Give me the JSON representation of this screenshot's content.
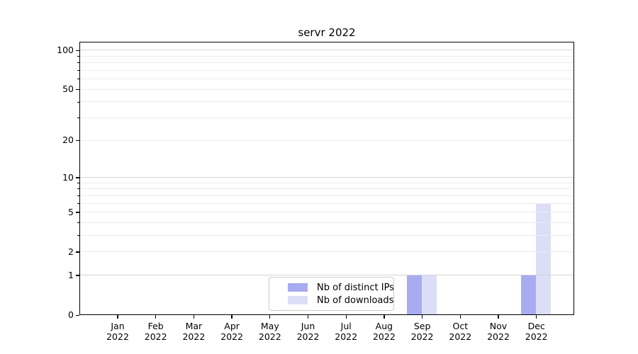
{
  "chart_data": {
    "type": "bar",
    "title": "servr 2022",
    "x_tick_labels_line1": [
      "Jan",
      "Feb",
      "Mar",
      "Apr",
      "May",
      "Jun",
      "Jul",
      "Aug",
      "Sep",
      "Oct",
      "Nov",
      "Dec"
    ],
    "x_tick_labels_line2": [
      "2022",
      "2022",
      "2022",
      "2022",
      "2022",
      "2022",
      "2022",
      "2022",
      "2022",
      "2022",
      "2022",
      "2022"
    ],
    "series": [
      {
        "name": "Nb of distinct IPs",
        "color": "#a9abf0",
        "values": [
          0,
          0,
          0,
          0,
          0,
          0,
          0,
          0,
          1,
          0,
          0,
          1
        ]
      },
      {
        "name": "Nb of downloads",
        "color": "#dcdef8",
        "values": [
          0,
          0,
          0,
          0,
          0,
          0,
          0,
          0,
          1,
          0,
          0,
          6
        ]
      }
    ],
    "y_scale": "log1p",
    "y_ticks": [
      0,
      1,
      2,
      5,
      10,
      20,
      50,
      100
    ],
    "ylim": [
      0,
      116
    ],
    "grid": "on",
    "grid_major_values": [
      1,
      10,
      100
    ],
    "grid_minor_values": [
      2,
      3,
      4,
      5,
      6,
      7,
      8,
      9,
      20,
      30,
      40,
      50,
      60,
      70,
      80,
      90
    ],
    "legend_position": "lower center",
    "colors": {
      "grid_major": "#d4d4d4",
      "grid_minor": "#ececec",
      "spine": "#000000",
      "background": "#ffffff"
    }
  }
}
